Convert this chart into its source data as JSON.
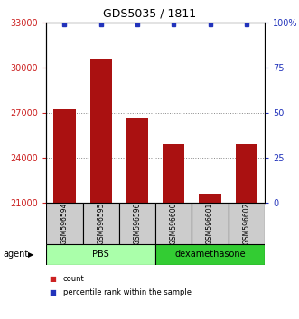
{
  "title": "GDS5035 / 1811",
  "samples": [
    "GSM596594",
    "GSM596595",
    "GSM596596",
    "GSM596600",
    "GSM596601",
    "GSM596602"
  ],
  "counts": [
    27200,
    30600,
    26600,
    24900,
    21600,
    24900
  ],
  "percentile_ranks": [
    99,
    99,
    99,
    99,
    99,
    99
  ],
  "ylim_left": [
    21000,
    33000
  ],
  "ylim_right": [
    0,
    100
  ],
  "yticks_left": [
    21000,
    24000,
    27000,
    30000,
    33000
  ],
  "yticks_right": [
    0,
    25,
    50,
    75,
    100
  ],
  "bar_color": "#aa1111",
  "dot_color": "#2233bb",
  "groups": [
    {
      "label": "PBS",
      "indices": [
        0,
        1,
        2
      ],
      "color": "#aaffaa"
    },
    {
      "label": "dexamethasone",
      "indices": [
        3,
        4,
        5
      ],
      "color": "#33cc33"
    }
  ],
  "group_label": "agent",
  "grid_color": "#888888",
  "left_axis_color": "#cc2222",
  "right_axis_color": "#2233bb",
  "sample_box_color": "#cccccc",
  "legend_items": [
    {
      "label": "count",
      "color": "#cc2222"
    },
    {
      "label": "percentile rank within the sample",
      "color": "#2233bb"
    }
  ]
}
